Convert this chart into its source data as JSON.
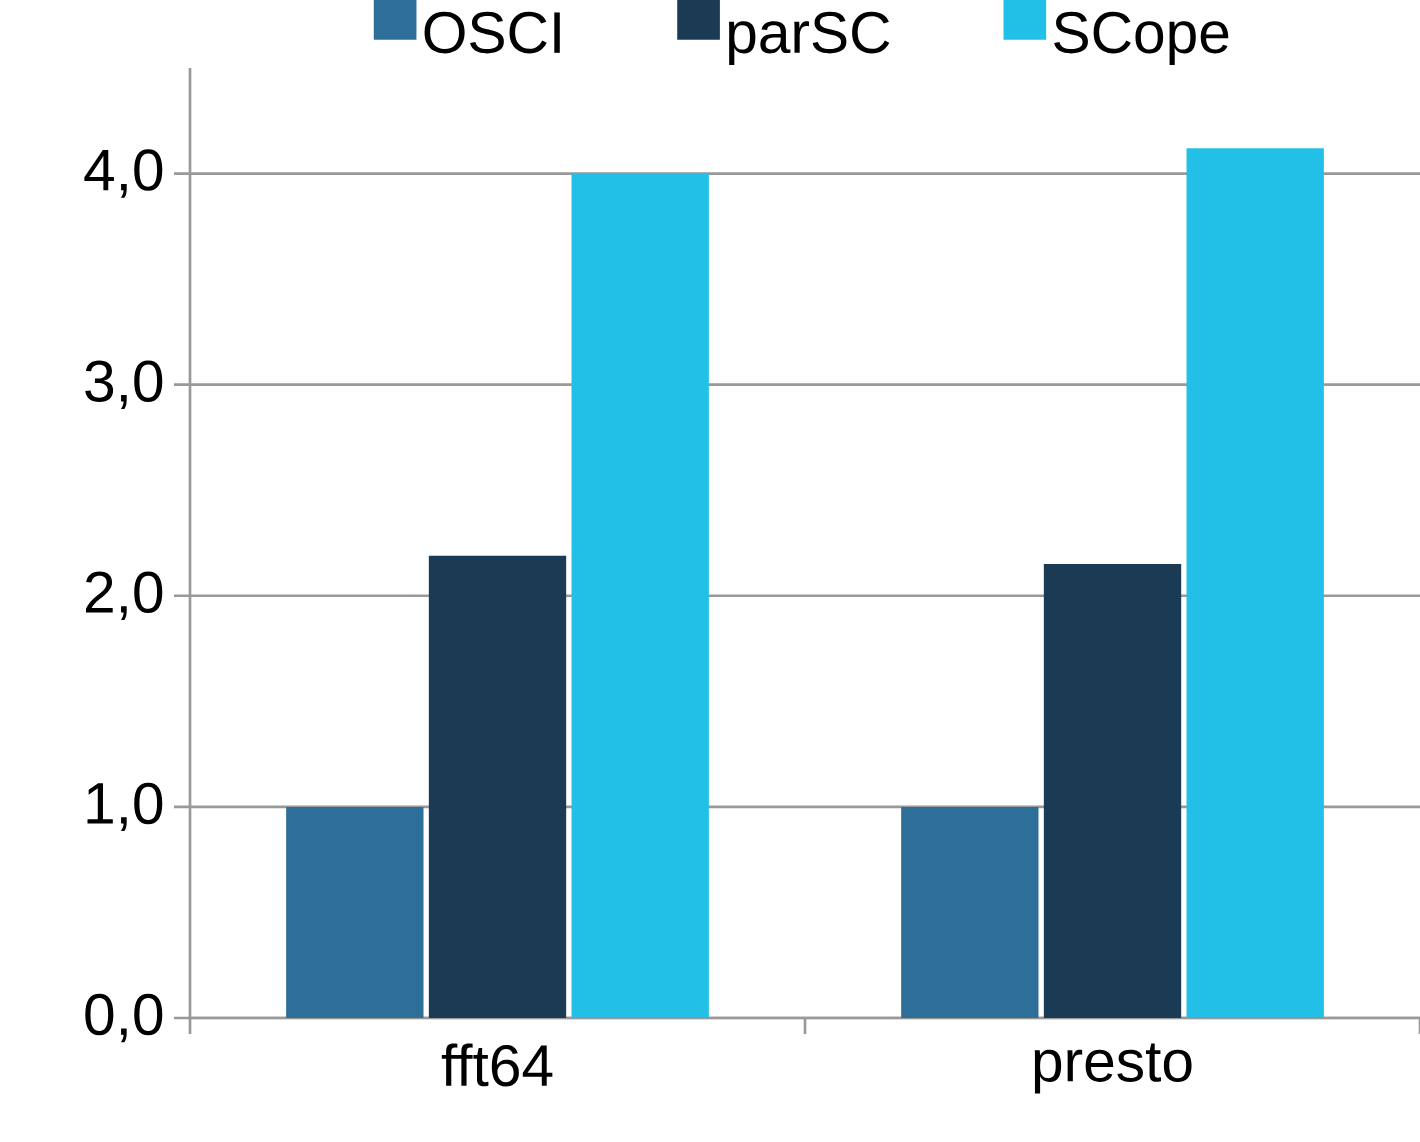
{
  "chart_data": {
    "type": "bar",
    "categories": [
      "fft64",
      "presto"
    ],
    "series": [
      {
        "name": "OSCI",
        "color": "#2e6f99",
        "values": [
          1.0,
          1.0
        ]
      },
      {
        "name": "parSC",
        "color": "#1a3b53",
        "values": [
          2.19,
          2.15
        ]
      },
      {
        "name": "SCope",
        "color": "#22c0e6",
        "values": [
          4.0,
          4.12
        ]
      }
    ],
    "ylim": [
      0,
      4.5
    ],
    "yticks": [
      {
        "value": 0,
        "label": "0,0"
      },
      {
        "value": 1,
        "label": "1,0"
      },
      {
        "value": 2,
        "label": "2,0"
      },
      {
        "value": 3,
        "label": "3,0"
      },
      {
        "value": 4,
        "label": "4,0"
      }
    ],
    "grid": "y",
    "legend": "top"
  }
}
